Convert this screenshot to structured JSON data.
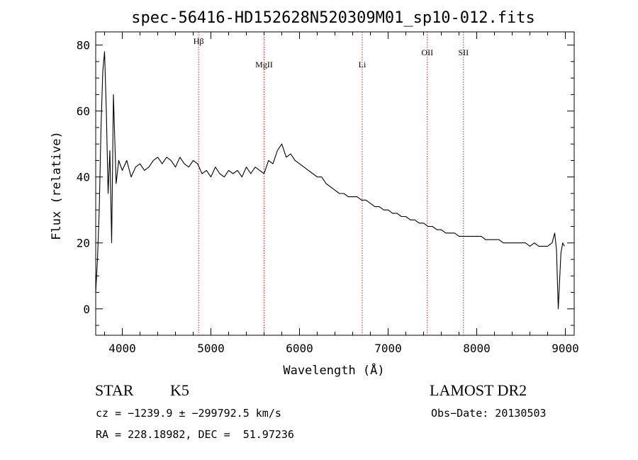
{
  "chart_data": {
    "type": "line",
    "title": "spec-56416-HD152628N520309M01_sp10-012.fits",
    "xlabel": "Wavelength (Å)",
    "ylabel": "Flux (relative)",
    "xlim": [
      3700,
      9100
    ],
    "ylim": [
      -8,
      84
    ],
    "xticks": [
      4000,
      5000,
      6000,
      7000,
      8000,
      9000
    ],
    "yticks": [
      0,
      20,
      40,
      60,
      80
    ],
    "grid": false,
    "line_color": "#000000",
    "marker_color": "#b22222",
    "lines": [
      {
        "label": "Hβ",
        "x": 4861
      },
      {
        "label": "MgII",
        "x": 5600
      },
      {
        "label": "Li",
        "x": 6708
      },
      {
        "label": "OII",
        "x": 7442
      },
      {
        "label": "SII",
        "x": 7850
      }
    ],
    "series": [
      {
        "x": [
          3700,
          3720,
          3740,
          3760,
          3780,
          3800,
          3820,
          3840,
          3860,
          3880,
          3900,
          3930,
          3960,
          4000,
          4050,
          4100,
          4150,
          4200,
          4250,
          4300,
          4350,
          4400,
          4450,
          4500,
          4550,
          4600,
          4650,
          4700,
          4750,
          4800,
          4850,
          4900,
          4950,
          5000,
          5050,
          5100,
          5150,
          5200,
          5250,
          5300,
          5350,
          5400,
          5450,
          5500,
          5550,
          5600,
          5650,
          5700,
          5750,
          5800,
          5850,
          5900,
          5950,
          6000,
          6050,
          6100,
          6150,
          6200,
          6250,
          6300,
          6350,
          6400,
          6450,
          6500,
          6550,
          6600,
          6650,
          6700,
          6750,
          6800,
          6850,
          6900,
          6950,
          7000,
          7050,
          7100,
          7150,
          7200,
          7250,
          7300,
          7350,
          7400,
          7450,
          7500,
          7550,
          7600,
          7650,
          7700,
          7750,
          7800,
          7850,
          7900,
          7950,
          8000,
          8050,
          8100,
          8150,
          8200,
          8250,
          8300,
          8350,
          8400,
          8450,
          8500,
          8550,
          8600,
          8650,
          8700,
          8750,
          8800,
          8850,
          8880,
          8900,
          8920,
          8950,
          8970,
          8990
        ],
        "y": [
          5,
          15,
          30,
          55,
          72,
          78,
          60,
          35,
          48,
          20,
          65,
          38,
          45,
          42,
          45,
          40,
          43,
          44,
          42,
          43,
          45,
          46,
          44,
          46,
          45,
          43,
          46,
          44,
          43,
          45,
          44,
          41,
          42,
          40,
          43,
          41,
          40,
          42,
          41,
          42,
          40,
          43,
          41,
          43,
          42,
          41,
          45,
          44,
          48,
          50,
          46,
          47,
          45,
          44,
          43,
          42,
          41,
          40,
          40,
          38,
          37,
          36,
          35,
          35,
          34,
          34,
          34,
          33,
          33,
          32,
          31,
          31,
          30,
          30,
          29,
          29,
          28,
          28,
          27,
          27,
          26,
          26,
          25,
          25,
          24,
          24,
          23,
          23,
          23,
          22,
          22,
          22,
          22,
          22,
          22,
          21,
          21,
          21,
          21,
          20,
          20,
          20,
          20,
          20,
          20,
          19,
          20,
          19,
          19,
          19,
          20,
          23,
          18,
          0,
          17,
          20,
          19
        ]
      }
    ]
  },
  "info": {
    "object_class": "STAR",
    "subclass": "K5",
    "survey": "LAMOST DR2",
    "cz_line": "cz = −1239.9 ± −299792.5 km/s",
    "obs_date_line": "Obs−Date: 20130503",
    "coords_line": "RA = 228.18982, DEC =  51.97236"
  }
}
